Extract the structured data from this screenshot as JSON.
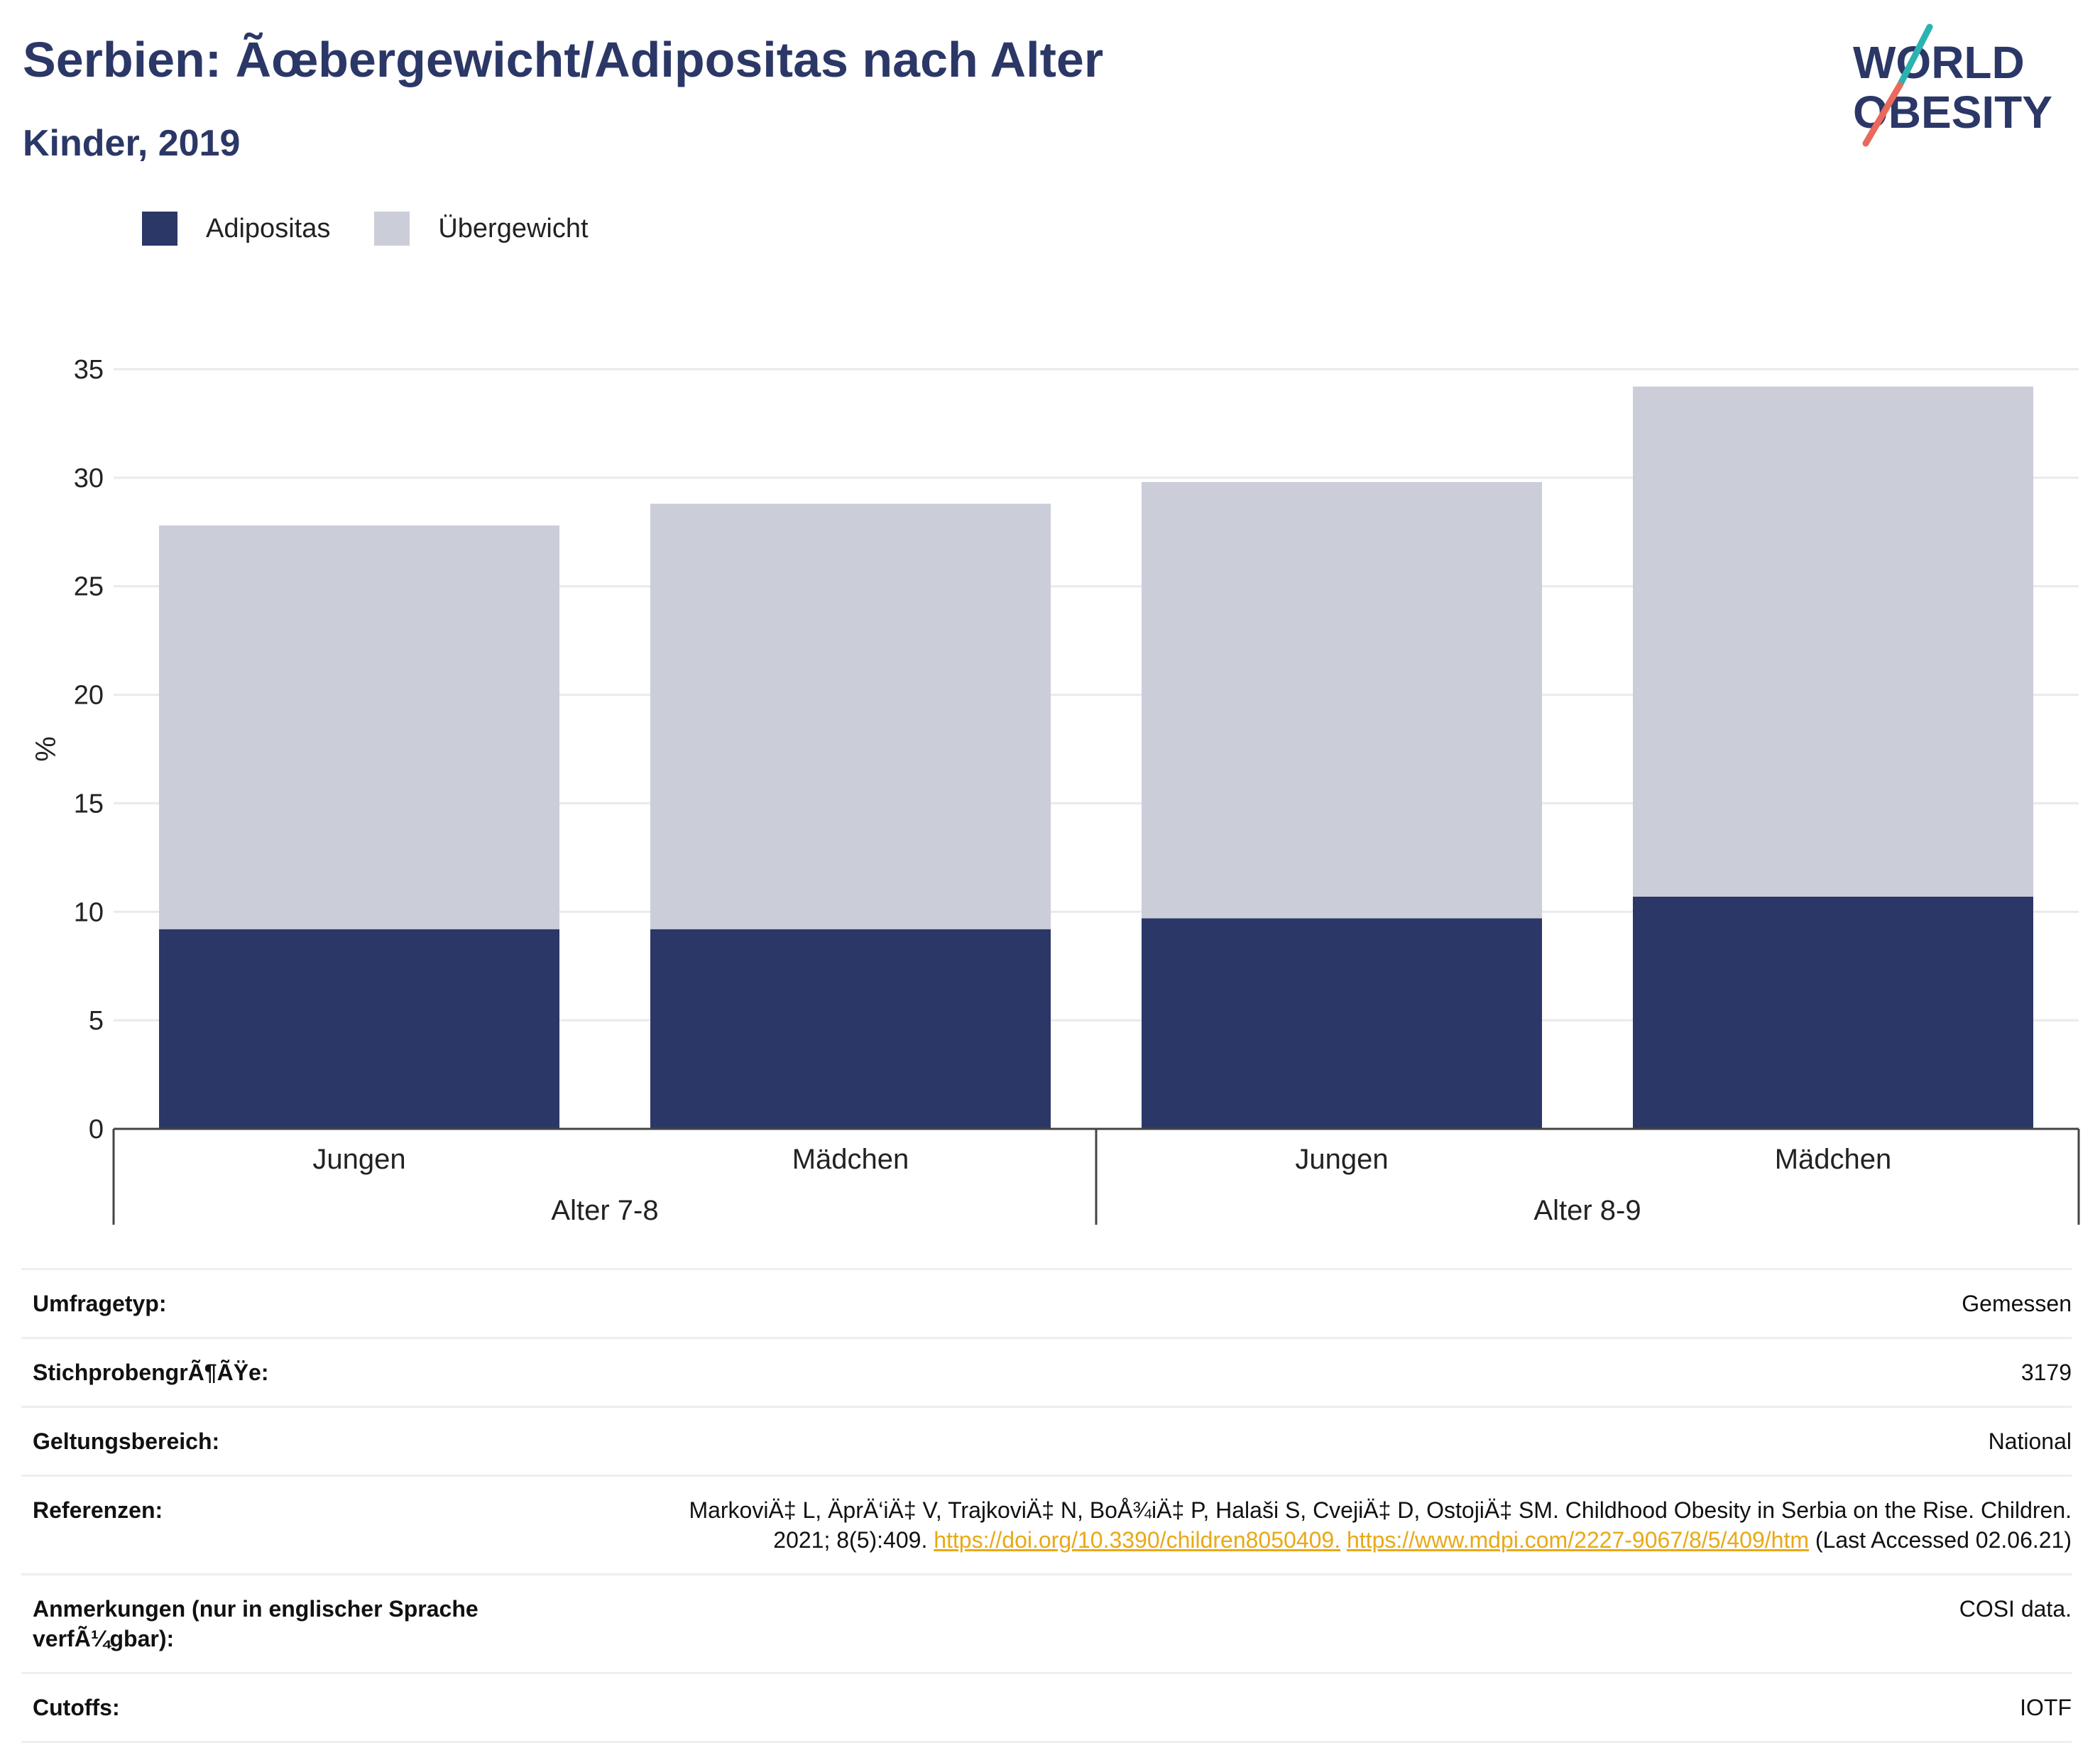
{
  "header": {
    "title": "Serbien: Ãœbergewicht/Adipositas nach Alter",
    "subtitle": "Kinder, 2019"
  },
  "logo": {
    "line1": "WORLD",
    "line2": "OBESITY",
    "colors": {
      "text": "#2b3766",
      "slash_top": "#2bb3b1",
      "slash_bottom": "#e9695a"
    }
  },
  "legend": {
    "items": [
      {
        "label": "Adipositas",
        "color": "#2b3766"
      },
      {
        "label": "Übergewicht",
        "color": "#cbcdd9"
      }
    ]
  },
  "chart_data": {
    "type": "bar",
    "stacked": true,
    "categories": [
      "Jungen",
      "Mädchen",
      "Jungen",
      "Mädchen"
    ],
    "groups": [
      {
        "label": "Alter 7-8",
        "span": [
          0,
          1
        ]
      },
      {
        "label": "Alter 8-9",
        "span": [
          2,
          3
        ]
      }
    ],
    "series": [
      {
        "name": "Adipositas",
        "color": "#2b3766",
        "values": [
          9.2,
          9.2,
          9.7,
          10.7
        ]
      },
      {
        "name": "Übergewicht",
        "color": "#cbcdd9",
        "values": [
          18.6,
          19.6,
          20.1,
          23.5
        ]
      }
    ],
    "ylabel": "%",
    "ylim": [
      0,
      35
    ],
    "yticks": [
      0,
      5,
      10,
      15,
      20,
      25,
      30,
      35
    ],
    "grid": true,
    "legend_position": "top-left"
  },
  "meta": {
    "rows": [
      {
        "key": "Umfragetyp:",
        "value": "Gemessen"
      },
      {
        "key": "StichprobengrÃ¶ÃŸe:",
        "value": "3179"
      },
      {
        "key": "Geltungsbereich:",
        "value": "National"
      },
      {
        "key": "Referenzen:",
        "value_line1": "MarkoviÄ‡ L, ÄprÄ‘iÄ‡ V, TrajkoviÄ‡ N, BoÅ¾iÄ‡ P, Halaši S, CvejiÄ‡ D, OstojiÄ‡ SM. Childhood Obesity in Serbia on the Rise. Children.",
        "value_line2_prefix": "2021; 8(5):409.",
        "link1": "https://doi.org/10.3390/children8050409.",
        "link2": "https://www.mdpi.com/2227-9067/8/5/409/htm",
        "value_line2_suffix": "(Last Accessed 02.06.21)"
      },
      {
        "key": "Anmerkungen (nur in englischer Sprache verfÃ¼gbar):",
        "value": "COSI data."
      },
      {
        "key": "Cutoffs:",
        "value": "IOTF"
      }
    ]
  }
}
